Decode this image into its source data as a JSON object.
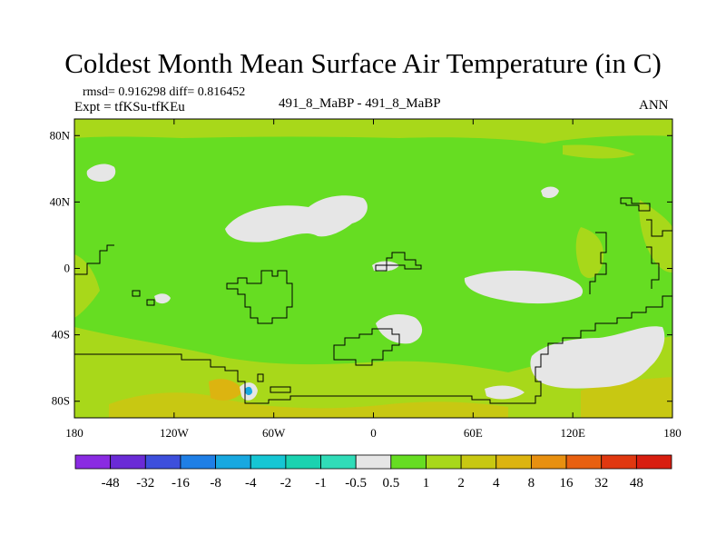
{
  "chart_data": {
    "type": "heatmap",
    "title": "Coldest Month Mean Surface Air Temperature (in C)",
    "stats_line": "rmsd= 0.916298 diff= 0.816452",
    "expt_line": "Expt = tfKSu-tfKEu",
    "comparison": "491_8_MaBP - 491_8_MaBP",
    "season": "ANN",
    "x_ticks": [
      "180",
      "120W",
      "60W",
      "0",
      "60E",
      "120E",
      "180"
    ],
    "y_ticks": [
      "80N",
      "40N",
      "0",
      "40S",
      "80S"
    ],
    "x_range": [
      -180,
      180
    ],
    "y_range": [
      -90,
      90
    ],
    "colorbar": {
      "labels": [
        "-48",
        "-32",
        "-16",
        "-8",
        "-4",
        "-2",
        "-1",
        "-0.5",
        "0.5",
        "1",
        "2",
        "4",
        "8",
        "16",
        "32",
        "48"
      ],
      "colors": [
        "#8a2be2",
        "#6a2bd6",
        "#3d4fdc",
        "#1f7fe6",
        "#18a8e0",
        "#16c6d4",
        "#1ad2b0",
        "#30dcb8",
        "#e6e6e6",
        "#66dd22",
        "#a8d81a",
        "#c8c812",
        "#dcb410",
        "#e89010",
        "#e86010",
        "#e03810",
        "#d81e10"
      ]
    },
    "background_bin": "1 to 2 (green)",
    "features": [
      {
        "name": "warm-band-south",
        "bin": "2 to 4",
        "lat_range": [
          -90,
          -32
        ]
      },
      {
        "name": "cold-anomaly-atlantic-indian",
        "bin": "-0.5 to 0.5",
        "lat_range": [
          -70,
          20
        ]
      }
    ]
  }
}
